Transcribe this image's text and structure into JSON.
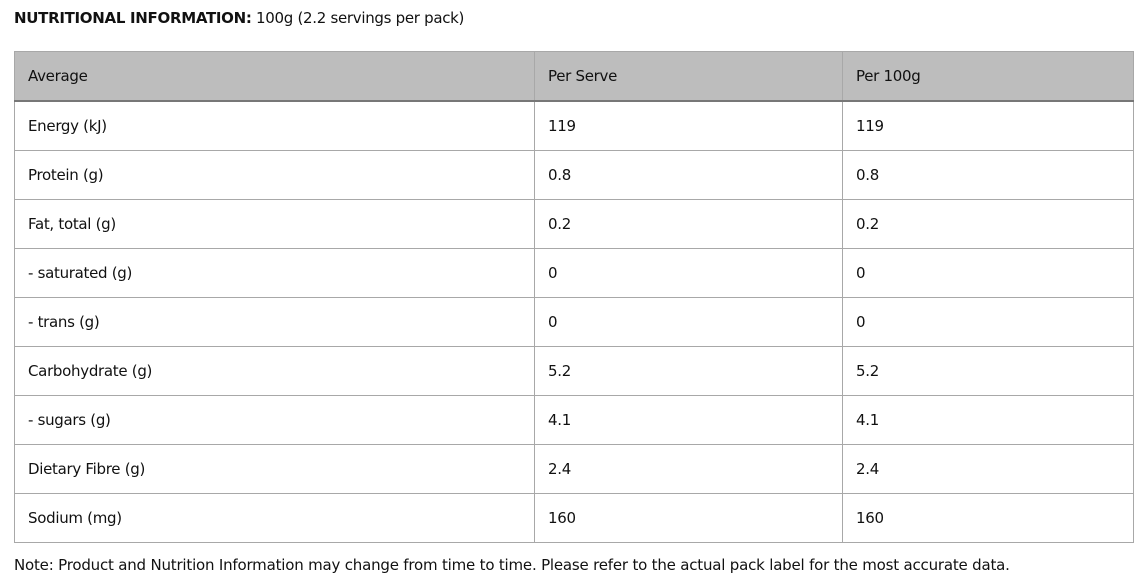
{
  "title": {
    "label": "NUTRITIONAL INFORMATION:",
    "value": "100g (2.2 servings per pack)"
  },
  "table": {
    "headers": [
      "Average",
      "Per Serve",
      "Per 100g"
    ],
    "rows": [
      [
        "Energy (kJ)",
        "119",
        "119"
      ],
      [
        "Protein (g)",
        "0.8",
        "0.8"
      ],
      [
        "Fat, total (g)",
        "0.2",
        "0.2"
      ],
      [
        "- saturated (g)",
        "0",
        "0"
      ],
      [
        "- trans (g)",
        "0",
        "0"
      ],
      [
        "Carbohydrate (g)",
        "5.2",
        "5.2"
      ],
      [
        "- sugars (g)",
        "4.1",
        "4.1"
      ],
      [
        "Dietary Fibre (g)",
        "2.4",
        "2.4"
      ],
      [
        "Sodium (mg)",
        "160",
        "160"
      ]
    ]
  },
  "note": "Note: Product and Nutrition Information may change from time to time. Please refer to the actual pack label for the most accurate data."
}
